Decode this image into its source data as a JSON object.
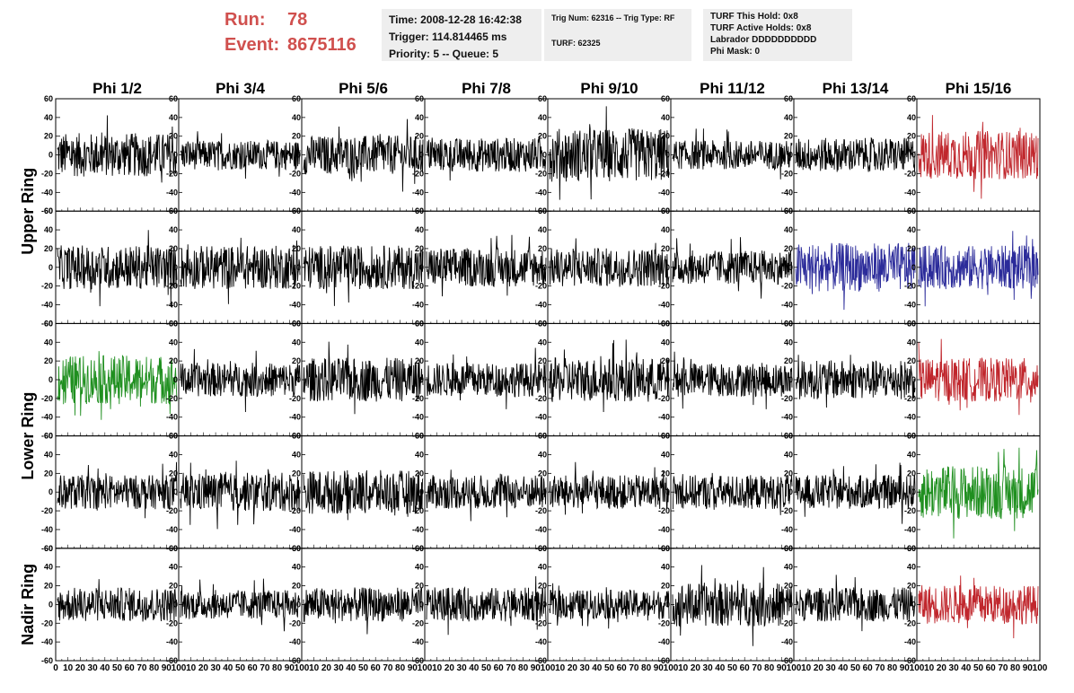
{
  "header": {
    "run_label": "Run:",
    "run_value": "78",
    "event_label": "Event:",
    "event_value": "8675116"
  },
  "info_time": {
    "time": "Time: 2008-12-28 16:42:38",
    "trigger": "Trigger: 114.814465 ms",
    "priority": "Priority: 5 -- Queue: 5"
  },
  "info_trig": {
    "trig": "Trig Num: 62316 -- Trig Type: RF",
    "turf": "TURF: 62325"
  },
  "info_turf": {
    "hold": "TURF This Hold: 0x8",
    "active": "TURF Active Holds: 0x8",
    "labrador": "Labrador DDDDDDDDDD",
    "phimask": "Phi Mask: 0"
  },
  "columns": [
    "Phi 1/2",
    "Phi 3/4",
    "Phi 5/6",
    "Phi 7/8",
    "Phi 9/10",
    "Phi 11/12",
    "Phi 13/14",
    "Phi 15/16"
  ],
  "ring_labels": [
    {
      "label": "Upper Ring"
    },
    {
      "label": "Lower Ring"
    },
    {
      "label": "Nadir Ring"
    }
  ],
  "axis": {
    "y_ticks": [
      "60",
      "40",
      "20",
      "0",
      "-20",
      "-40",
      "-60"
    ],
    "x_ticks": [
      "0",
      "10",
      "20",
      "30",
      "40",
      "50",
      "60",
      "70",
      "80",
      "90",
      "100"
    ],
    "ylim": [
      -60,
      60
    ],
    "xlim": [
      0,
      100
    ]
  },
  "colors": {
    "black": "#000000",
    "red": "#c0272d",
    "blue": "#2b2b9a",
    "green": "#1f8f1f"
  },
  "chart_data": {
    "type": "line",
    "rows": 5,
    "cols": 8,
    "x_range": [
      0,
      100
    ],
    "y_range": [
      -60,
      60
    ],
    "waveform_amplitude_rows": [
      [
        18,
        12,
        16,
        14,
        22,
        12,
        14,
        20
      ],
      [
        18,
        18,
        18,
        16,
        16,
        14,
        20,
        18
      ],
      [
        20,
        14,
        18,
        14,
        18,
        14,
        16,
        18
      ],
      [
        14,
        16,
        18,
        14,
        14,
        14,
        14,
        22
      ],
      [
        14,
        12,
        14,
        14,
        12,
        18,
        14,
        16
      ]
    ],
    "highlighted_traces": [
      {
        "row": 0,
        "col": 7,
        "color": "red"
      },
      {
        "row": 1,
        "col": 6,
        "color": "blue"
      },
      {
        "row": 1,
        "col": 7,
        "color": "blue"
      },
      {
        "row": 2,
        "col": 0,
        "color": "green"
      },
      {
        "row": 2,
        "col": 7,
        "color": "red"
      },
      {
        "row": 3,
        "col": 7,
        "color": "green"
      },
      {
        "row": 4,
        "col": 7,
        "color": "red"
      }
    ]
  }
}
